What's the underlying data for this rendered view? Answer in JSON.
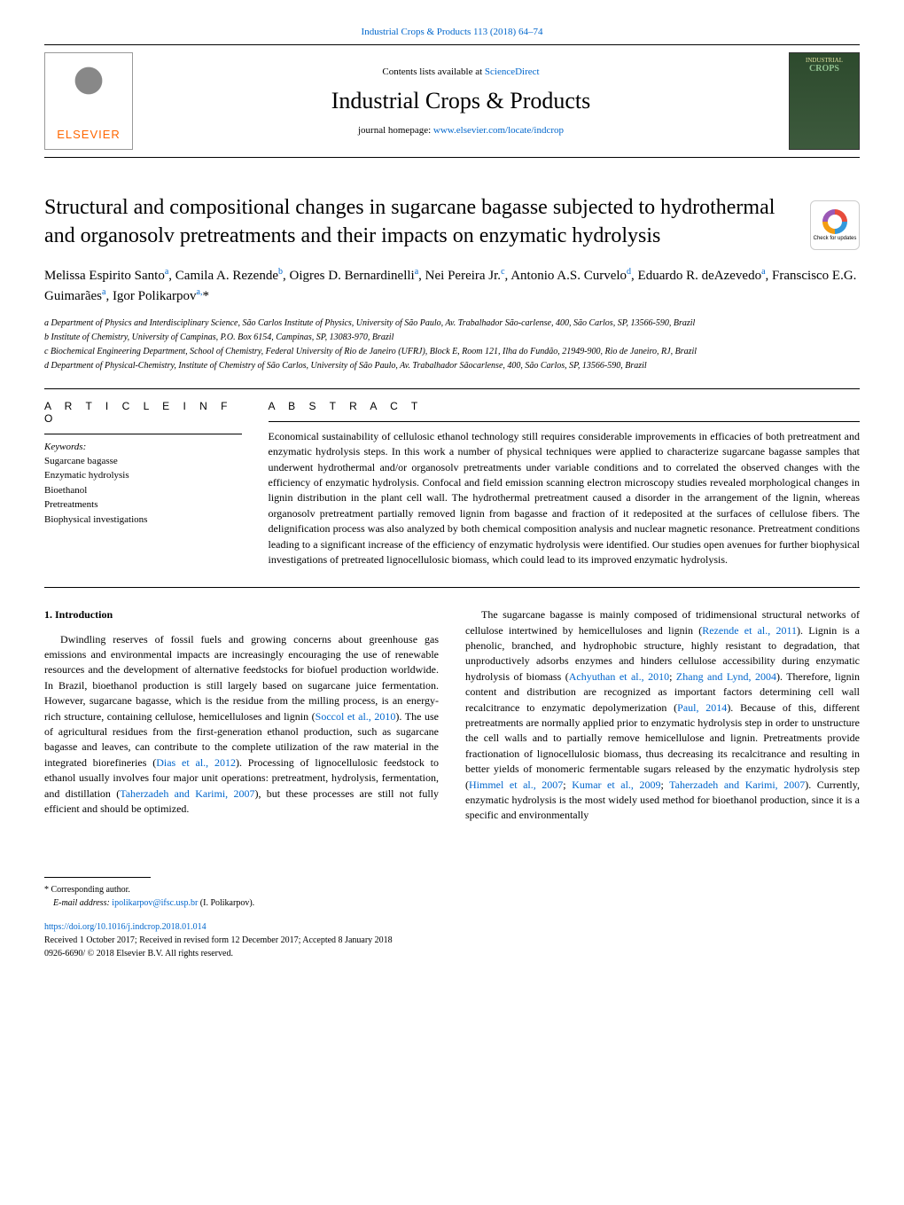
{
  "topCitation": "Industrial Crops & Products 113 (2018) 64–74",
  "header": {
    "contentsPrefix": "Contents lists available at ",
    "contentsLink": "ScienceDirect",
    "journalName": "Industrial Crops & Products",
    "homepagePrefix": "journal homepage: ",
    "homepageLink": "www.elsevier.com/locate/indcrop",
    "elsevierLabel": "ELSEVIER",
    "coverLine1": "INDUSTRIAL",
    "coverLine2": "CROPS"
  },
  "checkUpdates": "Check for updates",
  "title": "Structural and compositional changes in sugarcane bagasse subjected to hydrothermal and organosolv pretreatments and their impacts on enzymatic hydrolysis",
  "authorsHtml": "Melissa Espirito Santo<sup>a</sup>, Camila A. Rezende<sup>b</sup>, Oigres D. Bernardinelli<sup>a</sup>, Nei Pereira  Jr.<sup>c</sup>, Antonio A.S. Curvelo<sup>d</sup>, Eduardo R. deAzevedo<sup>a</sup>, Franscisco E.G. Guimarães<sup>a</sup>, Igor Polikarpov<sup>a,</sup>*",
  "affiliations": [
    "a Department of Physics and Interdisciplinary Science, São Carlos Institute of Physics, University of São Paulo, Av. Trabalhador São-carlense, 400, São Carlos, SP, 13566-590, Brazil",
    "b Institute of Chemistry, University of Campinas, P.O. Box 6154, Campinas, SP, 13083-970, Brazil",
    "c Biochemical Engineering Department, School of Chemistry, Federal University of Rio de Janeiro (UFRJ), Block E, Room 121, Ilha do Fundão, 21949-900, Rio de Janeiro, RJ, Brazil",
    "d Department of Physical-Chemistry, Institute of Chemistry of São Carlos, University of São Paulo, Av. Trabalhador Sãocarlense, 400, São Carlos, SP, 13566-590, Brazil"
  ],
  "articleInfo": {
    "head": "A R T I C L E   I N F O",
    "keywordsLabel": "Keywords:",
    "keywords": [
      "Sugarcane bagasse",
      "Enzymatic hydrolysis",
      "Bioethanol",
      "Pretreatments",
      "Biophysical investigations"
    ]
  },
  "abstract": {
    "head": "A B S T R A C T",
    "text": "Economical sustainability of cellulosic ethanol technology still requires considerable improvements in efficacies of both pretreatment and enzymatic hydrolysis steps. In this work a number of physical techniques were applied to characterize sugarcane bagasse samples that underwent hydrothermal and/or organosolv pretreatments under variable conditions and to correlated the observed changes with the efficiency of enzymatic hydrolysis. Confocal and field emission scanning electron microscopy studies revealed morphological changes in lignin distribution in the plant cell wall. The hydrothermal pretreatment caused a disorder in the arrangement of the lignin, whereas organosolv pretreatment partially removed lignin from bagasse and fraction of it redeposited at the surfaces of cellulose fibers. The delignification process was also analyzed by both chemical composition analysis and nuclear magnetic resonance. Pretreatment conditions leading to a significant increase of the efficiency of enzymatic hydrolysis were identified. Our studies open avenues for further biophysical investigations of pretreated lignocellulosic biomass, which could lead to its improved enzymatic hydrolysis."
  },
  "introduction": {
    "head": "1. Introduction",
    "para1Html": "Dwindling reserves of fossil fuels and growing concerns about greenhouse gas emissions and environmental impacts are increasingly encouraging the use of renewable resources and the development of alternative feedstocks for biofuel production worldwide. In Brazil, bioethanol production is still largely based on sugarcane juice fermentation. However, sugarcane bagasse, which is the residue from the milling process, is an energy-rich structure, containing cellulose, hemicelluloses and lignin (<a>Soccol et al., 2010</a>). The use of agricultural residues from the first-generation ethanol production, such as sugarcane bagasse and leaves, can contribute to the complete utilization of the raw material in the integrated biorefineries (<a>Dias et al., 2012</a>). Processing of lignocellulosic feedstock to ethanol usually involves four major unit operations: pretreatment, hydrolysis, fermentation, and distillation (<a>Taherzadeh and Karimi, 2007</a>), but these processes are still not fully efficient and should be optimized.",
    "para2Html": "The sugarcane bagasse is mainly composed of tridimensional structural networks of cellulose intertwined by hemicelluloses and lignin (<a>Rezende et al., 2011</a>). Lignin is a phenolic, branched, and hydrophobic structure, highly resistant to degradation, that unproductively adsorbs enzymes and hinders cellulose accessibility during enzymatic hydrolysis of biomass (<a>Achyuthan et al., 2010</a>; <a>Zhang and Lynd, 2004</a>). Therefore, lignin content and distribution are recognized as important factors determining cell wall recalcitrance to enzymatic depolymerization (<a>Paul, 2014</a>). Because of this, different pretreatments are normally applied prior to enzymatic hydrolysis step in order to unstructure the cell walls and to partially remove hemicellulose and lignin. Pretreatments provide fractionation of lignocellulosic biomass, thus decreasing its recalcitrance and resulting in better yields of monomeric fermentable sugars released by the enzymatic hydrolysis step (<a>Himmel et al., 2007</a>; <a>Kumar et al., 2009</a>; <a>Taherzadeh and Karimi, 2007</a>). Currently, enzymatic hydrolysis is the most widely used method for bioethanol production, since it is a specific and environmentally"
  },
  "footer": {
    "corresponding": "* Corresponding author.",
    "emailLabel": "E-mail address: ",
    "email": "ipolikarpov@ifsc.usp.br",
    "emailSuffix": " (I. Polikarpov).",
    "doi": "https://doi.org/10.1016/j.indcrop.2018.01.014",
    "received": "Received 1 October 2017; Received in revised form 12 December 2017; Accepted 8 January 2018",
    "copyright": "0926-6690/ © 2018 Elsevier B.V. All rights reserved."
  },
  "colors": {
    "link": "#0066cc",
    "elsevierOrange": "#ff6600",
    "text": "#000000",
    "background": "#ffffff"
  },
  "typography": {
    "titleFontSize": 24,
    "journalNameFontSize": 26,
    "bodyFontSize": 12,
    "authorsFontSize": 15,
    "affiliationsFontSize": 10,
    "footerFontSize": 10
  }
}
